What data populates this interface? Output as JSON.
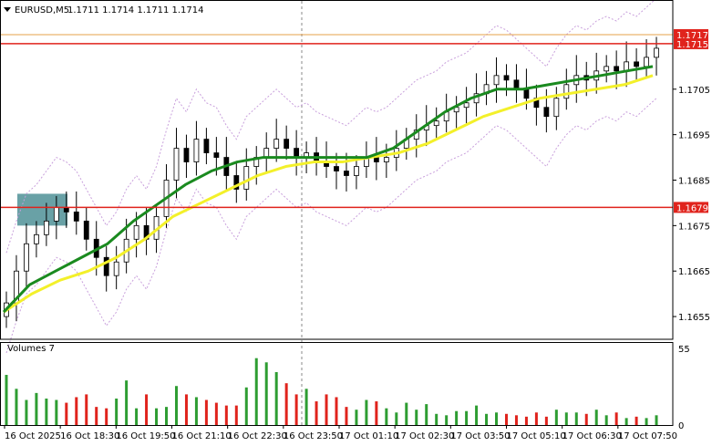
{
  "header": {
    "symbol": "EURUSD,M5",
    "ohlc": "1.1711 1.1714 1.1711 1.1714"
  },
  "volume_panel": {
    "label": "Volumes 7"
  },
  "price_tags": {
    "top_tag": "1.1717",
    "current_tag": "1.1715",
    "level_tag": "1.1679"
  },
  "colors": {
    "bull": "#2e9d32",
    "bear": "#e0231c",
    "fast_ma": "#1a8a1f",
    "slow_ma": "#f3f02a",
    "envelope": "#c9a0dc",
    "level_line": "#e0231c",
    "highlight": "#4f9097",
    "grid_vline": "#888888"
  },
  "chart_data": [
    {
      "type": "candlestick",
      "title": "EURUSD,M5",
      "ylim": [
        1.165,
        1.1721
      ],
      "y_ticks": [
        "1.1705",
        "1.1695",
        "1.1685",
        "1.1675",
        "1.1665",
        "1.1655"
      ],
      "x_ticks": [
        "16 Oct 2025",
        "16 Oct 18:30",
        "16 Oct 19:50",
        "16 Oct 21:10",
        "16 Oct 22:30",
        "16 Oct 23:50",
        "17 Oct 01:10",
        "17 Oct 02:30",
        "17 Oct 03:50",
        "17 Oct 05:10",
        "17 Oct 06:30",
        "17 Oct 07:50"
      ],
      "horizontal_levels": [
        1.1679,
        1.1715,
        1.1717
      ],
      "close": [
        1.1658,
        1.1665,
        1.1671,
        1.1673,
        1.1676,
        1.1679,
        1.1678,
        1.1676,
        1.1672,
        1.1668,
        1.1664,
        1.1667,
        1.1672,
        1.1675,
        1.1672,
        1.1677,
        1.1685,
        1.1692,
        1.1689,
        1.1694,
        1.1691,
        1.169,
        1.1686,
        1.1683,
        1.1688,
        1.169,
        1.1692,
        1.1694,
        1.1692,
        1.169,
        1.1691,
        1.1689,
        1.1688,
        1.1687,
        1.1686,
        1.1688,
        1.169,
        1.1689,
        1.169,
        1.1692,
        1.1694,
        1.1696,
        1.1697,
        1.1698,
        1.17,
        1.1701,
        1.1702,
        1.1704,
        1.1706,
        1.1708,
        1.1707,
        1.1705,
        1.1703,
        1.1701,
        1.1699,
        1.1703,
        1.1706,
        1.1708,
        1.1707,
        1.1709,
        1.171,
        1.1709,
        1.1711,
        1.171,
        1.1712,
        1.1714
      ],
      "fast_ma": [
        1.1656,
        1.1662,
        1.1665,
        1.1668,
        1.1671,
        1.1676,
        1.168,
        1.1684,
        1.1687,
        1.1689,
        1.169,
        1.169,
        1.169,
        1.169,
        1.169,
        1.1692,
        1.1696,
        1.17,
        1.1703,
        1.1705,
        1.1705,
        1.1706,
        1.1707,
        1.1708,
        1.1709,
        1.171
      ],
      "slow_ma": [
        1.1656,
        1.166,
        1.1663,
        1.1665,
        1.1668,
        1.1672,
        1.1677,
        1.168,
        1.1683,
        1.1686,
        1.1688,
        1.1689,
        1.1689,
        1.169,
        1.1691,
        1.1693,
        1.1696,
        1.1699,
        1.1701,
        1.1703,
        1.1704,
        1.1705,
        1.1706,
        1.1708
      ]
    },
    {
      "type": "bar",
      "title": "Volumes 7",
      "y_ticks": [
        "55",
        "0"
      ],
      "ylim": [
        0,
        55
      ],
      "values": [
        36,
        26,
        18,
        23,
        19,
        18,
        16,
        20,
        22,
        13,
        12,
        19,
        32,
        12,
        22,
        12,
        13,
        28,
        22,
        20,
        18,
        16,
        14,
        14,
        27,
        48,
        45,
        38,
        30,
        22,
        26,
        17,
        22,
        20,
        13,
        11,
        18,
        17,
        12,
        9,
        16,
        11,
        15,
        8,
        7,
        10,
        10,
        14,
        8,
        9,
        8,
        7,
        6,
        9,
        6,
        11,
        9,
        9,
        8,
        11,
        7,
        9,
        5,
        6,
        5,
        7
      ]
    }
  ]
}
